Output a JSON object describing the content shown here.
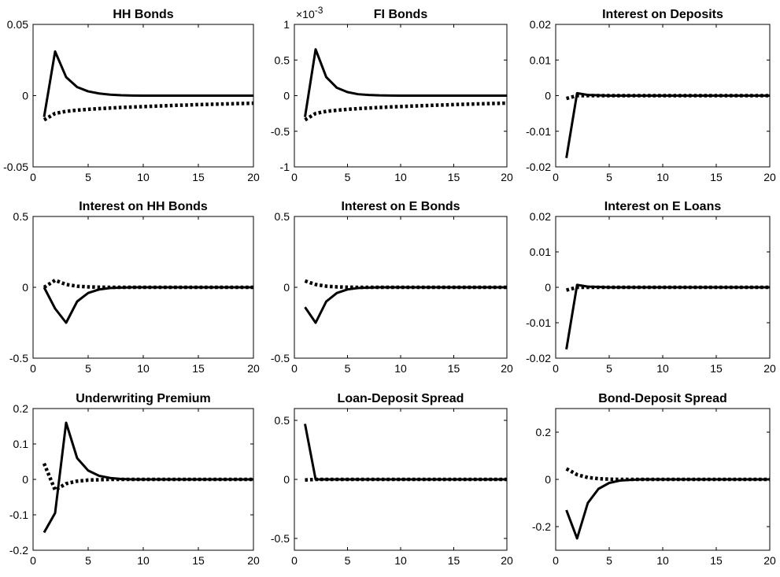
{
  "chart_data": [
    {
      "type": "line",
      "title": "HH Bonds",
      "x": [
        1,
        2,
        3,
        4,
        5,
        6,
        7,
        8,
        9,
        10,
        11,
        12,
        13,
        14,
        15,
        16,
        17,
        18,
        19,
        20
      ],
      "xlim": [
        0,
        20
      ],
      "ylim": [
        -0.05,
        0.05
      ],
      "xticks": [
        "0",
        "5",
        "10",
        "15",
        "20"
      ],
      "xtick_values": [
        0,
        5,
        10,
        15,
        20
      ],
      "yticks": [
        "-0.05",
        "0",
        "0.05"
      ],
      "ytick_values": [
        -0.05,
        0,
        0.05
      ],
      "series": [
        {
          "style": "solid",
          "values": [
            -0.015,
            0.031,
            0.013,
            0.006,
            0.003,
            0.0015,
            0.0007,
            0.0003,
            0.0001,
            0,
            0,
            0,
            0,
            0,
            0,
            0,
            0,
            0,
            0,
            0
          ]
        },
        {
          "style": "dotted",
          "values": [
            -0.017,
            -0.0125,
            -0.011,
            -0.0102,
            -0.0096,
            -0.0091,
            -0.0087,
            -0.0083,
            -0.008,
            -0.0077,
            -0.0074,
            -0.0071,
            -0.0068,
            -0.0066,
            -0.0063,
            -0.0061,
            -0.0059,
            -0.0057,
            -0.0055,
            -0.0053
          ]
        }
      ]
    },
    {
      "type": "line",
      "title": "FI Bonds",
      "exponent_label": "×10",
      "exponent_power": "-3",
      "x": [
        1,
        2,
        3,
        4,
        5,
        6,
        7,
        8,
        9,
        10,
        11,
        12,
        13,
        14,
        15,
        16,
        17,
        18,
        19,
        20
      ],
      "xlim": [
        0,
        20
      ],
      "ylim": [
        -1,
        1
      ],
      "xticks": [
        "0",
        "5",
        "10",
        "15",
        "20"
      ],
      "xtick_values": [
        0,
        5,
        10,
        15,
        20
      ],
      "yticks": [
        "-1",
        "-0.5",
        "0",
        "0.5",
        "1"
      ],
      "ytick_values": [
        -1,
        -0.5,
        0,
        0.5,
        1
      ],
      "series": [
        {
          "style": "solid",
          "values": [
            -0.3,
            0.65,
            0.26,
            0.11,
            0.05,
            0.02,
            0.01,
            0.004,
            0.002,
            0,
            0,
            0,
            0,
            0,
            0,
            0,
            0,
            0,
            0,
            0
          ]
        },
        {
          "style": "dotted",
          "values": [
            -0.34,
            -0.25,
            -0.22,
            -0.205,
            -0.192,
            -0.182,
            -0.174,
            -0.166,
            -0.159,
            -0.153,
            -0.147,
            -0.141,
            -0.136,
            -0.131,
            -0.126,
            -0.121,
            -0.117,
            -0.113,
            -0.109,
            -0.105
          ]
        }
      ]
    },
    {
      "type": "line",
      "title": "Interest on Deposits",
      "x": [
        1,
        2,
        3,
        4,
        5,
        6,
        7,
        8,
        9,
        10,
        11,
        12,
        13,
        14,
        15,
        16,
        17,
        18,
        19,
        20
      ],
      "xlim": [
        0,
        20
      ],
      "ylim": [
        -0.02,
        0.02
      ],
      "xticks": [
        "0",
        "5",
        "10",
        "15",
        "20"
      ],
      "xtick_values": [
        0,
        5,
        10,
        15,
        20
      ],
      "yticks": [
        "-0.02",
        "-0.01",
        "0",
        "0.01",
        "0.02"
      ],
      "ytick_values": [
        -0.02,
        -0.01,
        0,
        0.01,
        0.02
      ],
      "series": [
        {
          "style": "solid",
          "values": [
            -0.0175,
            0.0007,
            0.0002,
            0.0001,
            0,
            0,
            0,
            0,
            0,
            0,
            0,
            0,
            0,
            0,
            0,
            0,
            0,
            0,
            0,
            0
          ]
        },
        {
          "style": "dotted",
          "values": [
            -0.0008,
            0,
            0,
            0,
            0,
            0,
            0,
            0,
            0,
            0,
            0,
            0,
            0,
            0,
            0,
            0,
            0,
            0,
            0,
            0
          ]
        }
      ]
    },
    {
      "type": "line",
      "title": "Interest on HH Bonds",
      "x": [
        1,
        2,
        3,
        4,
        5,
        6,
        7,
        8,
        9,
        10,
        11,
        12,
        13,
        14,
        15,
        16,
        17,
        18,
        19,
        20
      ],
      "xlim": [
        0,
        20
      ],
      "ylim": [
        -0.5,
        0.5
      ],
      "xticks": [
        "0",
        "5",
        "10",
        "15",
        "20"
      ],
      "xtick_values": [
        0,
        5,
        10,
        15,
        20
      ],
      "yticks": [
        "-0.5",
        "0",
        "0.5"
      ],
      "ytick_values": [
        -0.5,
        0,
        0.5
      ],
      "series": [
        {
          "style": "solid",
          "values": [
            0,
            -0.15,
            -0.25,
            -0.1,
            -0.04,
            -0.015,
            -0.005,
            -0.002,
            0,
            0,
            0,
            0,
            0,
            0,
            0,
            0,
            0,
            0,
            0,
            0
          ]
        },
        {
          "style": "dotted",
          "values": [
            0,
            0.05,
            0.02,
            0.008,
            0.003,
            0.001,
            0,
            0,
            0,
            0,
            0,
            0,
            0,
            0,
            0,
            0,
            0,
            0,
            0,
            0
          ]
        }
      ]
    },
    {
      "type": "line",
      "title": "Interest on E Bonds",
      "x": [
        1,
        2,
        3,
        4,
        5,
        6,
        7,
        8,
        9,
        10,
        11,
        12,
        13,
        14,
        15,
        16,
        17,
        18,
        19,
        20
      ],
      "xlim": [
        0,
        20
      ],
      "ylim": [
        -0.5,
        0.5
      ],
      "xticks": [
        "0",
        "5",
        "10",
        "15",
        "20"
      ],
      "xtick_values": [
        0,
        5,
        10,
        15,
        20
      ],
      "yticks": [
        "-0.5",
        "0",
        "0.5"
      ],
      "ytick_values": [
        -0.5,
        0,
        0.5
      ],
      "series": [
        {
          "style": "solid",
          "values": [
            -0.14,
            -0.25,
            -0.1,
            -0.04,
            -0.015,
            -0.005,
            -0.002,
            0,
            0,
            0,
            0,
            0,
            0,
            0,
            0,
            0,
            0,
            0,
            0,
            0
          ]
        },
        {
          "style": "dotted",
          "values": [
            0.045,
            0.02,
            0.008,
            0.003,
            0.001,
            0,
            0,
            0,
            0,
            0,
            0,
            0,
            0,
            0,
            0,
            0,
            0,
            0,
            0,
            0
          ]
        }
      ]
    },
    {
      "type": "line",
      "title": "Interest on E Loans",
      "x": [
        1,
        2,
        3,
        4,
        5,
        6,
        7,
        8,
        9,
        10,
        11,
        12,
        13,
        14,
        15,
        16,
        17,
        18,
        19,
        20
      ],
      "xlim": [
        0,
        20
      ],
      "ylim": [
        -0.02,
        0.02
      ],
      "xticks": [
        "0",
        "5",
        "10",
        "15",
        "20"
      ],
      "xtick_values": [
        0,
        5,
        10,
        15,
        20
      ],
      "yticks": [
        "-0.02",
        "-0.01",
        "0",
        "0.01",
        "0.02"
      ],
      "ytick_values": [
        -0.02,
        -0.01,
        0,
        0.01,
        0.02
      ],
      "series": [
        {
          "style": "solid",
          "values": [
            -0.0175,
            0.0007,
            0.0002,
            0.0001,
            0,
            0,
            0,
            0,
            0,
            0,
            0,
            0,
            0,
            0,
            0,
            0,
            0,
            0,
            0,
            0
          ]
        },
        {
          "style": "dotted",
          "values": [
            -0.0008,
            0,
            0,
            0,
            0,
            0,
            0,
            0,
            0,
            0,
            0,
            0,
            0,
            0,
            0,
            0,
            0,
            0,
            0,
            0
          ]
        }
      ]
    },
    {
      "type": "line",
      "title": "Underwriting Premium",
      "x": [
        1,
        2,
        3,
        4,
        5,
        6,
        7,
        8,
        9,
        10,
        11,
        12,
        13,
        14,
        15,
        16,
        17,
        18,
        19,
        20
      ],
      "xlim": [
        0,
        20
      ],
      "ylim": [
        -0.2,
        0.2
      ],
      "xticks": [
        "0",
        "5",
        "10",
        "15",
        "20"
      ],
      "xtick_values": [
        0,
        5,
        10,
        15,
        20
      ],
      "yticks": [
        "-0.2",
        "-0.1",
        "0",
        "0.1",
        "0.2"
      ],
      "ytick_values": [
        -0.2,
        -0.1,
        0,
        0.1,
        0.2
      ],
      "series": [
        {
          "style": "solid",
          "values": [
            -0.15,
            -0.095,
            0.16,
            0.06,
            0.025,
            0.01,
            0.004,
            0.001,
            0,
            0,
            0,
            0,
            0,
            0,
            0,
            0,
            0,
            0,
            0,
            0
          ]
        },
        {
          "style": "dotted",
          "values": [
            0.045,
            -0.03,
            -0.012,
            -0.005,
            -0.002,
            -0.001,
            0,
            0,
            0,
            0,
            0,
            0,
            0,
            0,
            0,
            0,
            0,
            0,
            0,
            0
          ]
        }
      ]
    },
    {
      "type": "line",
      "title": "Loan-Deposit Spread",
      "x": [
        1,
        2,
        3,
        4,
        5,
        6,
        7,
        8,
        9,
        10,
        11,
        12,
        13,
        14,
        15,
        16,
        17,
        18,
        19,
        20
      ],
      "xlim": [
        0,
        20
      ],
      "ylim": [
        -0.6,
        0.6
      ],
      "xticks": [
        "0",
        "5",
        "10",
        "15",
        "20"
      ],
      "xtick_values": [
        0,
        5,
        10,
        15,
        20
      ],
      "yticks": [
        "-0.5",
        "0",
        "0.5"
      ],
      "ytick_values": [
        -0.5,
        0,
        0.5
      ],
      "series": [
        {
          "style": "solid",
          "values": [
            0.47,
            0,
            0,
            0,
            0,
            0,
            0,
            0,
            0,
            0,
            0,
            0,
            0,
            0,
            0,
            0,
            0,
            0,
            0,
            0
          ]
        },
        {
          "style": "dotted",
          "values": [
            -0.005,
            0,
            0,
            0,
            0,
            0,
            0,
            0,
            0,
            0,
            0,
            0,
            0,
            0,
            0,
            0,
            0,
            0,
            0,
            0
          ]
        }
      ]
    },
    {
      "type": "line",
      "title": "Bond-Deposit Spread",
      "x": [
        1,
        2,
        3,
        4,
        5,
        6,
        7,
        8,
        9,
        10,
        11,
        12,
        13,
        14,
        15,
        16,
        17,
        18,
        19,
        20
      ],
      "xlim": [
        0,
        20
      ],
      "ylim": [
        -0.3,
        0.3
      ],
      "xticks": [
        "0",
        "5",
        "10",
        "15",
        "20"
      ],
      "xtick_values": [
        0,
        5,
        10,
        15,
        20
      ],
      "yticks": [
        "-0.2",
        "0",
        "0.2"
      ],
      "ytick_values": [
        -0.2,
        0,
        0.2
      ],
      "series": [
        {
          "style": "solid",
          "values": [
            -0.13,
            -0.25,
            -0.1,
            -0.04,
            -0.015,
            -0.005,
            -0.002,
            0,
            0,
            0,
            0,
            0,
            0,
            0,
            0,
            0,
            0,
            0,
            0,
            0
          ]
        },
        {
          "style": "dotted",
          "values": [
            0.045,
            0.02,
            0.008,
            0.003,
            0.001,
            0,
            0,
            0,
            0,
            0,
            0,
            0,
            0,
            0,
            0,
            0,
            0,
            0,
            0,
            0
          ]
        }
      ]
    }
  ]
}
